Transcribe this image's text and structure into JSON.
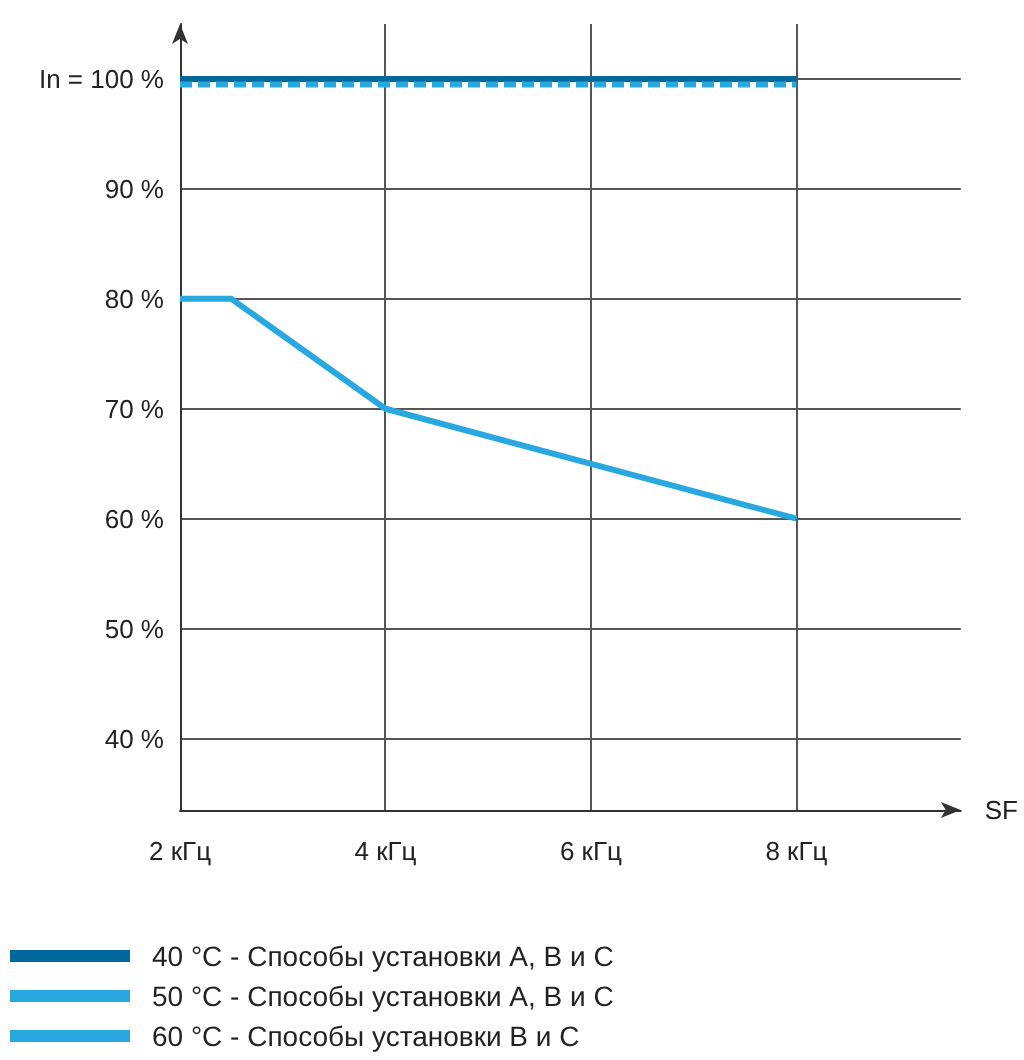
{
  "chart_data": {
    "type": "line",
    "xlabel": "SF",
    "xlim": [
      2,
      9.6
    ],
    "ylim": [
      33.5,
      105
    ],
    "xticks": [
      {
        "value": 2,
        "label": "2 кГц"
      },
      {
        "value": 4,
        "label": "4 кГц"
      },
      {
        "value": 6,
        "label": "6 кГц"
      },
      {
        "value": 8,
        "label": "8 кГц"
      }
    ],
    "yticks": [
      {
        "value": 40,
        "label": "40 %"
      },
      {
        "value": 50,
        "label": "50 %"
      },
      {
        "value": 60,
        "label": "60 %"
      },
      {
        "value": 70,
        "label": "70 %"
      },
      {
        "value": 80,
        "label": "80 %"
      },
      {
        "value": 90,
        "label": "90 %"
      },
      {
        "value": 100,
        "label": "In = 100 %"
      }
    ],
    "grid": true,
    "legend": "bottom left",
    "marker": "none",
    "series": [
      {
        "name": "40 °C - Способы установки A, B и C",
        "color": "#00689a",
        "x": [
          2,
          8
        ],
        "values": [
          100,
          100
        ],
        "line_style": "solid"
      },
      {
        "name": "50 °C - Способы установки A, B и C",
        "color": "#29a8e0",
        "x": [
          2,
          8
        ],
        "values": [
          99.5,
          99.5
        ],
        "line_style": "dashed"
      },
      {
        "name": "60 °C - Способы установки B и C",
        "color": "#29a8e0",
        "x": [
          2,
          2.5,
          4,
          8
        ],
        "values": [
          80,
          80,
          70,
          60
        ],
        "line_style": "solid"
      }
    ]
  }
}
